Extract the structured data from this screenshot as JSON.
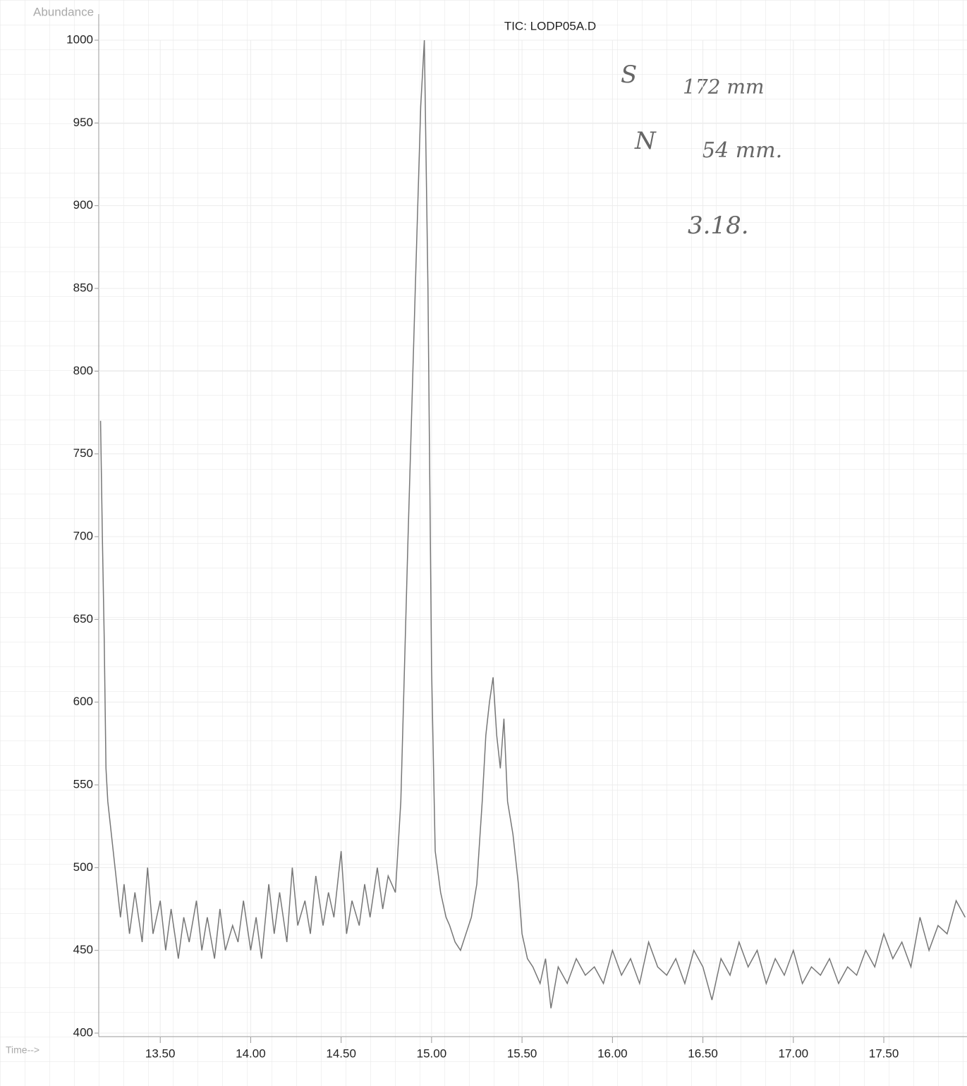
{
  "chart_data": {
    "type": "line",
    "title": "TIC: LODP05A.D",
    "y_label": "Abundance",
    "x_label": "Time-->",
    "annotations": [
      "S",
      "172 mm",
      "N",
      "54 mm.",
      "3.18."
    ],
    "color": "#777777",
    "grid": true,
    "xlim": [
      13.16,
      17.96
    ],
    "ylim": [
      400,
      1000
    ],
    "xticks": [
      {
        "value": 13.5,
        "label": "13.50"
      },
      {
        "value": 14,
        "label": "14.00"
      },
      {
        "value": 14.5,
        "label": "14.50"
      },
      {
        "value": 15,
        "label": "15.00"
      },
      {
        "value": 15.5,
        "label": "15.50"
      },
      {
        "value": 16,
        "label": "16.00"
      },
      {
        "value": 16.5,
        "label": "16.50"
      },
      {
        "value": 17,
        "label": "17.00"
      },
      {
        "value": 17.5,
        "label": "17.50"
      }
    ],
    "yticks": [
      400,
      450,
      500,
      550,
      600,
      650,
      700,
      750,
      800,
      850,
      900,
      950,
      1000
    ],
    "x": [
      13.17,
      13.18,
      13.19,
      13.2,
      13.21,
      13.23,
      13.25,
      13.28,
      13.3,
      13.33,
      13.36,
      13.4,
      13.43,
      13.46,
      13.5,
      13.53,
      13.56,
      13.6,
      13.63,
      13.66,
      13.7,
      13.73,
      13.76,
      13.8,
      13.83,
      13.86,
      13.9,
      13.93,
      13.96,
      14.0,
      14.03,
      14.06,
      14.1,
      14.13,
      14.16,
      14.2,
      14.23,
      14.26,
      14.3,
      14.33,
      14.36,
      14.4,
      14.43,
      14.46,
      14.5,
      14.53,
      14.56,
      14.6,
      14.63,
      14.66,
      14.7,
      14.73,
      14.76,
      14.8,
      14.83,
      14.87,
      14.91,
      14.94,
      14.96,
      14.98,
      15.0,
      15.02,
      15.05,
      15.08,
      15.1,
      15.13,
      15.16,
      15.19,
      15.22,
      15.25,
      15.28,
      15.3,
      15.32,
      15.34,
      15.36,
      15.38,
      15.4,
      15.42,
      15.45,
      15.48,
      15.5,
      15.53,
      15.56,
      15.6,
      15.63,
      15.66,
      15.7,
      15.75,
      15.8,
      15.85,
      15.9,
      15.95,
      16.0,
      16.05,
      16.1,
      16.15,
      16.2,
      16.25,
      16.3,
      16.35,
      16.4,
      16.45,
      16.5,
      16.55,
      16.6,
      16.65,
      16.7,
      16.75,
      16.8,
      16.85,
      16.9,
      16.95,
      17.0,
      17.05,
      17.1,
      17.15,
      17.2,
      17.25,
      17.3,
      17.35,
      17.4,
      17.45,
      17.5,
      17.55,
      17.6,
      17.65,
      17.7,
      17.75,
      17.8,
      17.85,
      17.9,
      17.95
    ],
    "values": [
      770,
      700,
      640,
      560,
      540,
      520,
      500,
      470,
      490,
      460,
      485,
      455,
      500,
      460,
      480,
      450,
      475,
      445,
      470,
      455,
      480,
      450,
      470,
      445,
      475,
      450,
      465,
      455,
      480,
      450,
      470,
      445,
      490,
      460,
      485,
      455,
      500,
      465,
      480,
      460,
      495,
      465,
      485,
      470,
      510,
      460,
      480,
      465,
      490,
      470,
      500,
      475,
      495,
      485,
      540,
      700,
      850,
      960,
      1000,
      850,
      620,
      510,
      485,
      470,
      465,
      455,
      450,
      460,
      470,
      490,
      540,
      580,
      600,
      615,
      580,
      560,
      590,
      540,
      520,
      490,
      460,
      445,
      440,
      430,
      445,
      415,
      440,
      430,
      445,
      435,
      440,
      430,
      450,
      435,
      445,
      430,
      455,
      440,
      435,
      445,
      430,
      450,
      440,
      420,
      445,
      435,
      455,
      440,
      450,
      430,
      445,
      435,
      450,
      430,
      440,
      435,
      445,
      430,
      440,
      435,
      450,
      440,
      460,
      445,
      455,
      440,
      470,
      450,
      465,
      460,
      480,
      470
    ]
  }
}
